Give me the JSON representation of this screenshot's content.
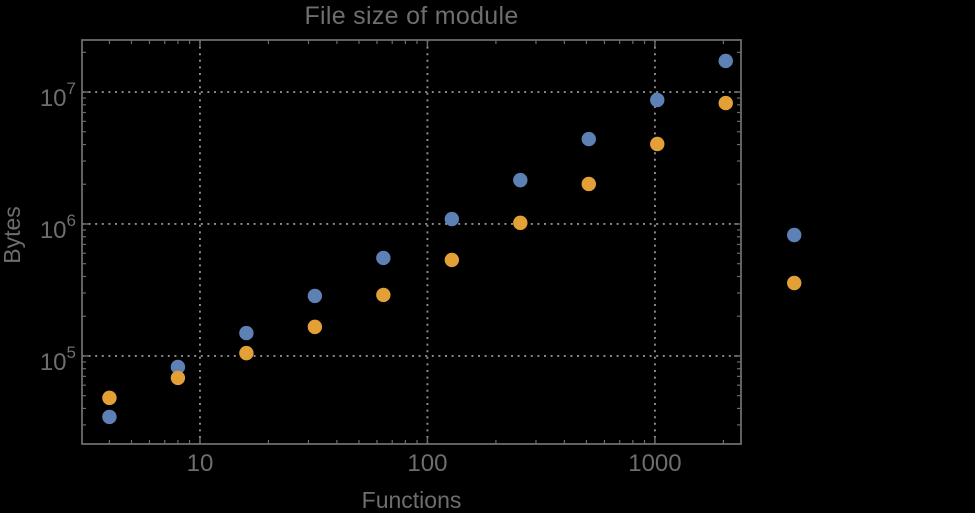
{
  "page": {
    "background_color": "#000000",
    "text_color": "#6e6e6e",
    "frame_color": "#6c6c6c",
    "grid_color": "#8f8f8f"
  },
  "chart_data": {
    "type": "scatter",
    "title": "File size of module",
    "xlabel": "Functions",
    "ylabel": "Bytes",
    "x_scale": "log",
    "y_scale": "log",
    "xlim": [
      3.03,
      2390
    ],
    "ylim": [
      21500,
      24800000
    ],
    "x_ticks": [
      10,
      100,
      1000
    ],
    "y_ticks": [
      100000,
      1000000,
      10000000
    ],
    "grid": "dotted gridlines at major ticks, both axes",
    "legend": "none",
    "marker": "filled circle",
    "series": [
      {
        "name": "blue",
        "color": "#5e81b5",
        "points": [
          [
            4,
            34500
          ],
          [
            8,
            82500
          ],
          [
            16,
            149000
          ],
          [
            32,
            285000
          ],
          [
            64,
            553000
          ],
          [
            128,
            1090000
          ],
          [
            256,
            2150000
          ],
          [
            512,
            4400000
          ],
          [
            1024,
            8700000
          ],
          [
            2048,
            17200000
          ],
          [
            4096,
            825000
          ]
        ]
      },
      {
        "name": "orange",
        "color": "#e3a036",
        "points": [
          [
            4,
            48100
          ],
          [
            8,
            68100
          ],
          [
            16,
            105000
          ],
          [
            32,
            166000
          ],
          [
            64,
            290000
          ],
          [
            128,
            534000
          ],
          [
            256,
            1020000
          ],
          [
            512,
            2010000
          ],
          [
            1024,
            4040000
          ],
          [
            2048,
            8250000
          ],
          [
            4096,
            357000
          ]
        ]
      }
    ]
  }
}
